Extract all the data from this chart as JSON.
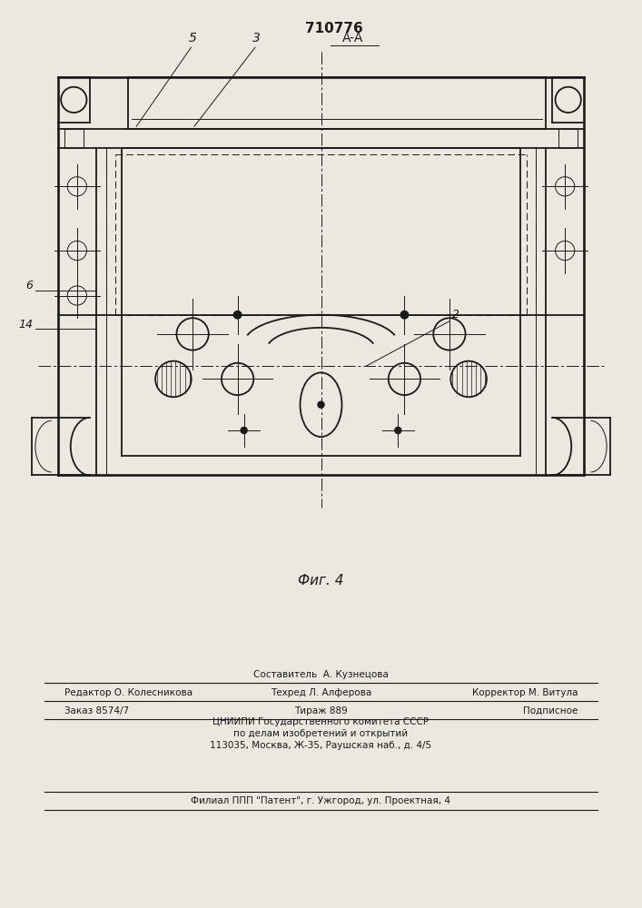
{
  "bg_color": "#ece8e0",
  "line_color": "#1a1a1a",
  "fig_width": 7.07,
  "fig_height": 10.0,
  "dpi": 100,
  "patent_num": "710776",
  "fig_caption": "Фиг. 4",
  "label_5": "5",
  "label_3": "3",
  "label_AA": "A-A",
  "label_6": "6",
  "label_14": "14",
  "label_2": "2",
  "footer": {
    "line1_center": "Составитель  А. Кузнецова",
    "line2_left": "Редактор О. Колесникова",
    "line2_center": "Техред Л. Алферова",
    "line2_right": "Корректор М. Витула",
    "line3_left": "Заказ 8574/7",
    "line3_center": "Тираж 889",
    "line3_right": "Подписное",
    "line4": "ЦНИИПИ Государственного комитета СССР",
    "line5": "по делам изобретений и открытий",
    "line6": "113035, Москва, Ж-35, Раушская наб., д. 4/5",
    "line7": "Филиал ППП \"Патент\", г. Ужгород, ул. Проектная, 4"
  }
}
